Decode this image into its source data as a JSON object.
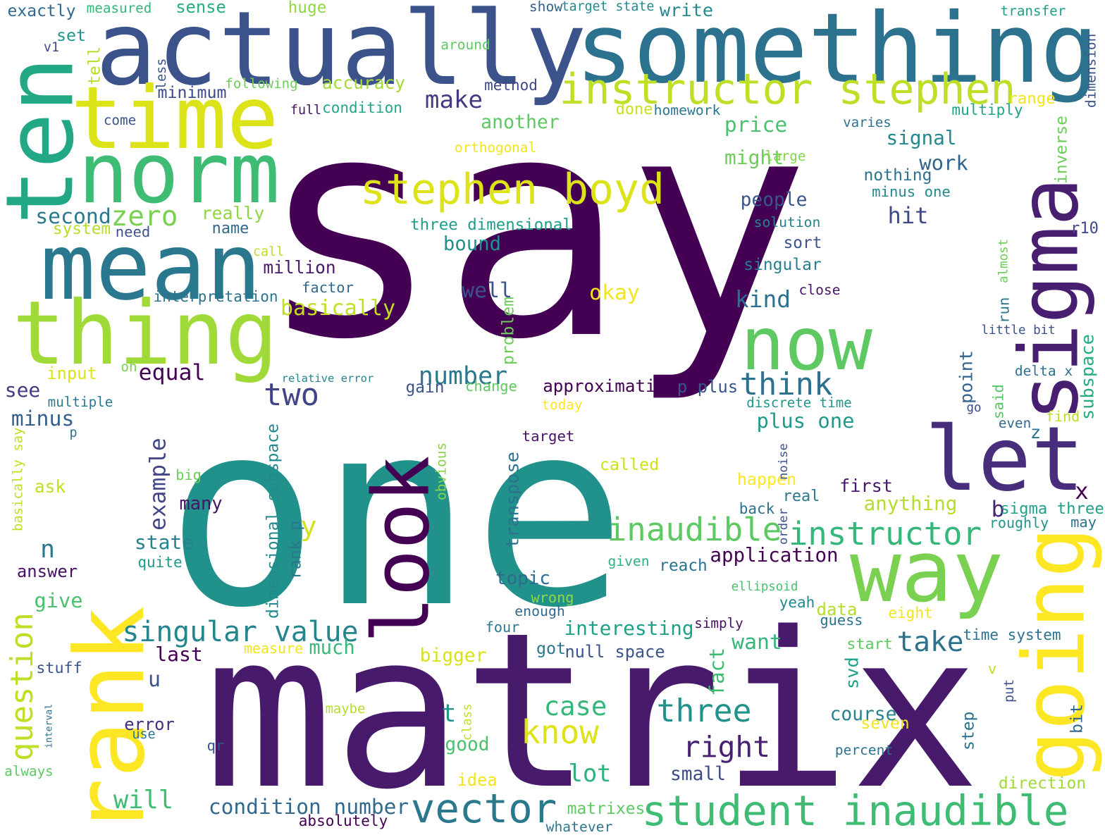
{
  "words": [
    {
      "text": "say",
      "color": "#440154"
    },
    {
      "text": "one",
      "color": "#21918c"
    },
    {
      "text": "matrix",
      "color": "#481a6c"
    },
    {
      "text": "actually",
      "color": "#3b528b"
    },
    {
      "text": "something",
      "color": "#2c728e"
    },
    {
      "text": "time",
      "color": "#dce319"
    },
    {
      "text": "ten",
      "color": "#22a884"
    },
    {
      "text": "norm",
      "color": "#3fbc73"
    },
    {
      "text": "mean",
      "color": "#2a788e"
    },
    {
      "text": "thing",
      "color": "#a0da39"
    },
    {
      "text": "rank",
      "color": "#fde725"
    },
    {
      "text": "look",
      "color": "#440154"
    },
    {
      "text": "now",
      "color": "#5ec962"
    },
    {
      "text": "way",
      "color": "#7ad151"
    },
    {
      "text": "let",
      "color": "#472d7b"
    },
    {
      "text": "sigma",
      "color": "#481f70"
    },
    {
      "text": "going",
      "color": "#fde725"
    },
    {
      "text": "instructor stephen",
      "color": "#bddf26"
    },
    {
      "text": "stephen boyd",
      "color": "#dce319"
    },
    {
      "text": "inaudible",
      "color": "#5ec962"
    },
    {
      "text": "instructor",
      "color": "#35b779"
    },
    {
      "text": "student inaudible",
      "color": "#3fbc73"
    },
    {
      "text": "vector",
      "color": "#2a788e"
    },
    {
      "text": "singular value",
      "color": "#25858e"
    },
    {
      "text": "know",
      "color": "#dde318"
    },
    {
      "text": "three",
      "color": "#21918c"
    },
    {
      "text": "right",
      "color": "#482173"
    },
    {
      "text": "think",
      "color": "#2c728e"
    },
    {
      "text": "two",
      "color": "#414487"
    },
    {
      "text": "question",
      "color": "#bddf26"
    },
    {
      "text": "condition number",
      "color": "#31688e"
    },
    {
      "text": "will",
      "color": "#3fbc73"
    },
    {
      "text": "take",
      "color": "#2c728e"
    },
    {
      "text": "case",
      "color": "#35b779"
    },
    {
      "text": "zero",
      "color": "#7ad151"
    },
    {
      "text": "make",
      "color": "#443983"
    },
    {
      "text": "price",
      "color": "#4ac16d"
    },
    {
      "text": "signal",
      "color": "#23898e"
    },
    {
      "text": "might",
      "color": "#6ccd5a"
    },
    {
      "text": "work",
      "color": "#33638d"
    },
    {
      "text": "people",
      "color": "#39568c"
    },
    {
      "text": "hit",
      "color": "#3e4989"
    },
    {
      "text": "number",
      "color": "#2a788e"
    },
    {
      "text": "basically",
      "color": "#c2df23"
    },
    {
      "text": "okay",
      "color": "#f1e51d"
    },
    {
      "text": "kind",
      "color": "#2d708e"
    },
    {
      "text": "singular",
      "color": "#277f8e"
    },
    {
      "text": "well",
      "color": "#3b528b"
    },
    {
      "text": "bound",
      "color": "#21918c"
    },
    {
      "text": "second",
      "color": "#2a788e"
    },
    {
      "text": "really",
      "color": "#8fd744"
    },
    {
      "text": "another",
      "color": "#5ec962"
    },
    {
      "text": "accuracy",
      "color": "#a5db36"
    },
    {
      "text": "minimum",
      "color": "#3e4989"
    },
    {
      "text": "million",
      "color": "#481b6d"
    },
    {
      "text": "equal",
      "color": "#440154"
    },
    {
      "text": "minus",
      "color": "#355f8d"
    },
    {
      "text": "see",
      "color": "#443983"
    },
    {
      "text": "n",
      "color": "#2a788e"
    },
    {
      "text": "example",
      "color": "#414487"
    },
    {
      "text": "state",
      "color": "#26828e"
    },
    {
      "text": "many",
      "color": "#481467"
    },
    {
      "text": "answer",
      "color": "#471164"
    },
    {
      "text": "give",
      "color": "#4ac16d"
    },
    {
      "text": "last",
      "color": "#440154"
    },
    {
      "text": "u",
      "color": "#3b528b"
    },
    {
      "text": "error",
      "color": "#472d7b"
    },
    {
      "text": "much",
      "color": "#38b977"
    },
    {
      "text": "lot",
      "color": "#2db27d"
    },
    {
      "text": "small",
      "color": "#3e4989"
    },
    {
      "text": "topic",
      "color": "#2f6c8e"
    },
    {
      "text": "application",
      "color": "#440154"
    },
    {
      "text": "approximation",
      "color": "#440154"
    },
    {
      "text": "interesting",
      "color": "#1fa088"
    },
    {
      "text": "plus one",
      "color": "#1f9a8a"
    },
    {
      "text": "discrete time",
      "color": "#1f958b"
    },
    {
      "text": "first",
      "color": "#481769"
    },
    {
      "text": "anything",
      "color": "#b5de2b"
    },
    {
      "text": "want",
      "color": "#35b779"
    },
    {
      "text": "fact",
      "color": "#3fbc73"
    },
    {
      "text": "svd",
      "color": "#1fa088"
    },
    {
      "text": "course",
      "color": "#26828e"
    },
    {
      "text": "good",
      "color": "#4ac16d"
    },
    {
      "text": "bigger",
      "color": "#d8e219"
    },
    {
      "text": "got",
      "color": "#2a788e"
    },
    {
      "text": "null space",
      "color": "#3b528b"
    },
    {
      "text": "transpose",
      "color": "#2c728e"
    },
    {
      "text": "dimensional subspace",
      "color": "#23898e"
    },
    {
      "text": "y",
      "color": "#d2e21b"
    },
    {
      "text": "t",
      "color": "#1f958b"
    },
    {
      "text": "x",
      "color": "#440154"
    },
    {
      "text": "b",
      "color": "#482475"
    },
    {
      "text": "go",
      "color": "#3e4989"
    },
    {
      "text": "point",
      "color": "#33638d"
    },
    {
      "text": "subspace",
      "color": "#25ab82"
    },
    {
      "text": "inverse",
      "color": "#6ccd5a"
    },
    {
      "text": "dimension",
      "color": "#3b528b"
    },
    {
      "text": "three dimensional",
      "color": "#1f9e89"
    },
    {
      "text": "step",
      "color": "#2c728e"
    },
    {
      "text": "time system",
      "color": "#2c728e"
    },
    {
      "text": "direction",
      "color": "#a0da39"
    },
    {
      "text": "sigma three",
      "color": "#1fa088"
    },
    {
      "text": "stuff",
      "color": "#3b528b"
    },
    {
      "text": "ask",
      "color": "#c2df23"
    },
    {
      "text": "input",
      "color": "#dce319"
    },
    {
      "text": "system",
      "color": "#b5de2b"
    },
    {
      "text": "need",
      "color": "#3b528b"
    },
    {
      "text": "name",
      "color": "#31688e"
    },
    {
      "text": "interpretation",
      "color": "#2c728e"
    },
    {
      "text": "factor",
      "color": "#31688e"
    },
    {
      "text": "relative error",
      "color": "#26828e"
    },
    {
      "text": "gain",
      "color": "#3b528b"
    },
    {
      "text": "change",
      "color": "#5ec962"
    },
    {
      "text": "p plus",
      "color": "#39568c"
    },
    {
      "text": "exactly",
      "color": "#31688e"
    },
    {
      "text": "measured",
      "color": "#35b779"
    },
    {
      "text": "sense",
      "color": "#27ad81"
    },
    {
      "text": "huge",
      "color": "#8fd744"
    },
    {
      "text": "show",
      "color": "#33638d"
    },
    {
      "text": "target state",
      "color": "#23898e"
    },
    {
      "text": "write",
      "color": "#23898e"
    },
    {
      "text": "transfer",
      "color": "#1fa088"
    },
    {
      "text": "set",
      "color": "#1f958b"
    },
    {
      "text": "v1",
      "color": "#3e4989"
    },
    {
      "text": "around",
      "color": "#5ec962"
    },
    {
      "text": "following",
      "color": "#6ccd5a"
    },
    {
      "text": "method",
      "color": "#404688"
    },
    {
      "text": "full",
      "color": "#481467"
    },
    {
      "text": "condition",
      "color": "#22a884"
    },
    {
      "text": "come",
      "color": "#3b528b"
    },
    {
      "text": "done",
      "color": "#c8e020"
    },
    {
      "text": "homework",
      "color": "#2a788e"
    },
    {
      "text": "multiply",
      "color": "#20a486"
    },
    {
      "text": "range",
      "color": "#f1e51d"
    },
    {
      "text": "varies",
      "color": "#2c728e"
    },
    {
      "text": "orthogonal",
      "color": "#f1e51d"
    },
    {
      "text": "large",
      "color": "#86d549"
    },
    {
      "text": "nothing",
      "color": "#2c728e"
    },
    {
      "text": "minus one",
      "color": "#23898e"
    },
    {
      "text": "solution",
      "color": "#26828e"
    },
    {
      "text": "r10",
      "color": "#3e4989"
    },
    {
      "text": "sort",
      "color": "#3b528b"
    },
    {
      "text": "close",
      "color": "#481467"
    },
    {
      "text": "little bit",
      "color": "#3b528b"
    },
    {
      "text": "delta x",
      "color": "#2c728e"
    },
    {
      "text": "find",
      "color": "#bddf26"
    },
    {
      "text": "even",
      "color": "#31688e"
    },
    {
      "text": "said",
      "color": "#54c568"
    },
    {
      "text": "almost",
      "color": "#6ccd5a"
    },
    {
      "text": "run",
      "color": "#2a788e"
    },
    {
      "text": "z",
      "color": "#2c728e"
    },
    {
      "text": "tell",
      "color": "#b5de2b"
    },
    {
      "text": "less",
      "color": "#3b528b"
    },
    {
      "text": "call",
      "color": "#bddf26"
    },
    {
      "text": "oh",
      "color": "#7ad151"
    },
    {
      "text": "multiple",
      "color": "#2a788e"
    },
    {
      "text": "p",
      "color": "#2c728e"
    },
    {
      "text": "basically say",
      "color": "#c2df23"
    },
    {
      "text": "big",
      "color": "#6ccd5a"
    },
    {
      "text": "quite",
      "color": "#1f9a8a"
    },
    {
      "text": "target",
      "color": "#481467"
    },
    {
      "text": "today",
      "color": "#fde725"
    },
    {
      "text": "obvious",
      "color": "#86d549"
    },
    {
      "text": "problem",
      "color": "#6ccd5a"
    },
    {
      "text": "called",
      "color": "#d0e11c"
    },
    {
      "text": "happen",
      "color": "#fde725"
    },
    {
      "text": "back",
      "color": "#2c728e"
    },
    {
      "text": "real",
      "color": "#2a788e"
    },
    {
      "text": "order",
      "color": "#3b528b"
    },
    {
      "text": "noise",
      "color": "#3b528b"
    },
    {
      "text": "reach",
      "color": "#2c728e"
    },
    {
      "text": "given",
      "color": "#2db27d"
    },
    {
      "text": "rank p",
      "color": "#2a788e"
    },
    {
      "text": "ellipsoid",
      "color": "#4ac16d"
    },
    {
      "text": "yeah",
      "color": "#23898e"
    },
    {
      "text": "data",
      "color": "#b5de2b"
    },
    {
      "text": "guess",
      "color": "#2c728e"
    },
    {
      "text": "eight",
      "color": "#f1e51d"
    },
    {
      "text": "simply",
      "color": "#471164"
    },
    {
      "text": "four",
      "color": "#2a788e"
    },
    {
      "text": "enough",
      "color": "#31688e"
    },
    {
      "text": "wrong",
      "color": "#8fd744"
    },
    {
      "text": "start",
      "color": "#5ec962"
    },
    {
      "text": "roughly",
      "color": "#1f958b"
    },
    {
      "text": "may",
      "color": "#2c728e"
    },
    {
      "text": "measure",
      "color": "#f1e51d"
    },
    {
      "text": "maybe",
      "color": "#b5de2b"
    },
    {
      "text": "class",
      "color": "#c8e020"
    },
    {
      "text": "interval",
      "color": "#2c728e"
    },
    {
      "text": "use",
      "color": "#2c728e"
    },
    {
      "text": "qr",
      "color": "#3b528b"
    },
    {
      "text": "always",
      "color": "#5ec962"
    },
    {
      "text": "idea",
      "color": "#f1e51d"
    },
    {
      "text": "matrixes",
      "color": "#5ec962"
    },
    {
      "text": "absolutely",
      "color": "#440154"
    },
    {
      "text": "whatever",
      "color": "#2a788e"
    },
    {
      "text": "seven",
      "color": "#f1e51d"
    },
    {
      "text": "percent",
      "color": "#2c728e"
    },
    {
      "text": "put",
      "color": "#3b528b"
    },
    {
      "text": "v",
      "color": "#bddf26"
    },
    {
      "text": "bit",
      "color": "#31688e"
    }
  ]
}
